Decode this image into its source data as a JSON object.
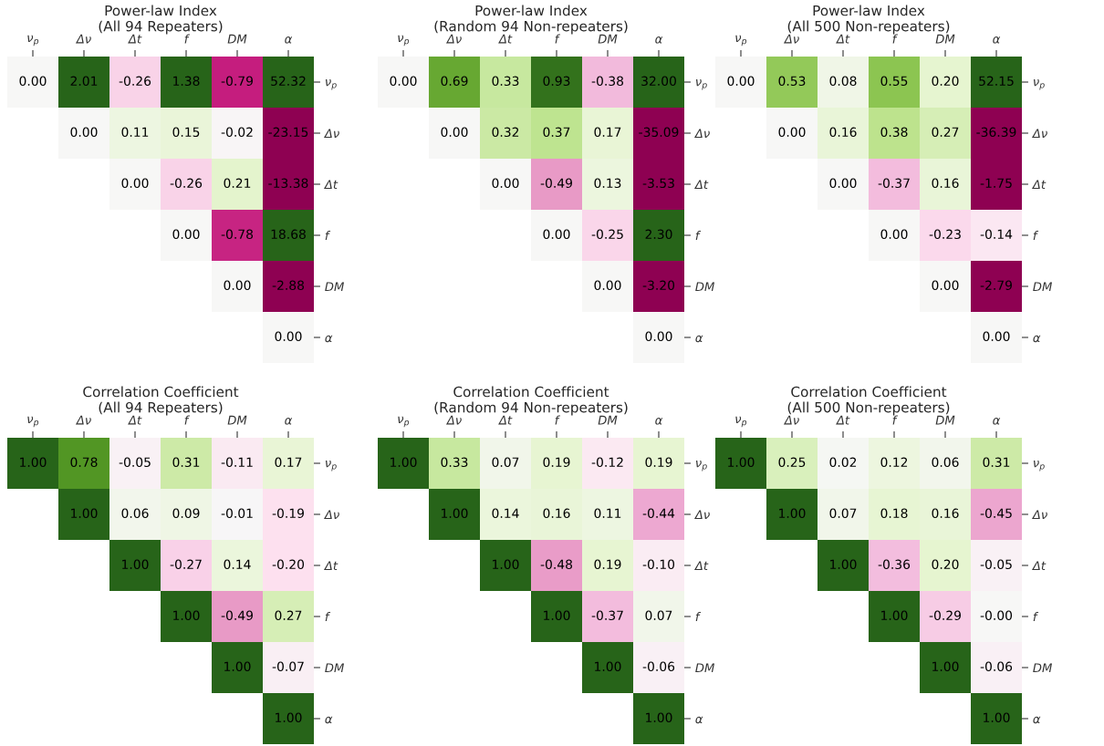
{
  "chart_data": [
    {
      "type": "heatmap",
      "title": "Power-law Index\n(All 94 Repeaters)",
      "categories": [
        "ν$_{p}$",
        "Δν",
        "Δt",
        "f",
        "DM",
        "α"
      ],
      "y_categories": [
        "ν$_{p}$",
        "Δν",
        "Δt",
        "f",
        "DM",
        "α"
      ],
      "cells": [
        [
          0.0,
          2.01,
          -0.26,
          1.38,
          -0.79,
          52.32
        ],
        [
          null,
          0.0,
          0.11,
          0.15,
          -0.02,
          -23.15
        ],
        [
          null,
          null,
          0.0,
          -0.26,
          0.21,
          -13.38
        ],
        [
          null,
          null,
          null,
          0.0,
          -0.78,
          18.68
        ],
        [
          null,
          null,
          null,
          null,
          0.0,
          -2.88
        ],
        [
          null,
          null,
          null,
          null,
          null,
          0.0
        ]
      ],
      "cell_labels": [
        [
          "0.00",
          "2.01",
          "-0.26",
          "1.38",
          "-0.79",
          "52.32"
        ],
        [
          null,
          "0.00",
          "0.11",
          "0.15",
          "-0.02",
          "-23.15"
        ],
        [
          null,
          null,
          "0.00",
          "-0.26",
          "0.21",
          "-13.38"
        ],
        [
          null,
          null,
          null,
          "0.00",
          "-0.78",
          "18.68"
        ],
        [
          null,
          null,
          null,
          null,
          "0.00",
          "-2.88"
        ],
        [
          null,
          null,
          null,
          null,
          null,
          "0.00"
        ]
      ]
    },
    {
      "type": "heatmap",
      "title": "Power-law Index\n(Random 94 Non-repeaters)",
      "categories": [
        "ν$_{p}$",
        "Δν",
        "Δt",
        "f",
        "DM",
        "α"
      ],
      "y_categories": [
        "ν$_{p}$",
        "Δν",
        "Δt",
        "f",
        "DM",
        "α"
      ],
      "cells": [
        [
          0.0,
          0.69,
          0.33,
          0.93,
          -0.38,
          32.0
        ],
        [
          null,
          0.0,
          0.32,
          0.37,
          0.17,
          -35.09
        ],
        [
          null,
          null,
          0.0,
          -0.49,
          0.13,
          -3.53
        ],
        [
          null,
          null,
          null,
          0.0,
          -0.25,
          2.3
        ],
        [
          null,
          null,
          null,
          null,
          0.0,
          -3.2
        ],
        [
          null,
          null,
          null,
          null,
          null,
          0.0
        ]
      ],
      "cell_labels": [
        [
          "0.00",
          "0.69",
          "0.33",
          "0.93",
          "-0.38",
          "32.00"
        ],
        [
          null,
          "0.00",
          "0.32",
          "0.37",
          "0.17",
          "-35.09"
        ],
        [
          null,
          null,
          "0.00",
          "-0.49",
          "0.13",
          "-3.53"
        ],
        [
          null,
          null,
          null,
          "0.00",
          "-0.25",
          "2.30"
        ],
        [
          null,
          null,
          null,
          null,
          "0.00",
          "-3.20"
        ],
        [
          null,
          null,
          null,
          null,
          null,
          "0.00"
        ]
      ]
    },
    {
      "type": "heatmap",
      "title": "Power-law Index\n(All 500 Non-repeaters)",
      "categories": [
        "ν$_{p}$",
        "Δν",
        "Δt",
        "f",
        "DM",
        "α"
      ],
      "y_categories": [
        "ν$_{p}$",
        "Δν",
        "Δt",
        "f",
        "DM",
        "α"
      ],
      "cells": [
        [
          0.0,
          0.53,
          0.08,
          0.55,
          0.2,
          52.15
        ],
        [
          null,
          0.0,
          0.16,
          0.38,
          0.27,
          -36.39
        ],
        [
          null,
          null,
          0.0,
          -0.37,
          0.16,
          -1.75
        ],
        [
          null,
          null,
          null,
          0.0,
          -0.23,
          -0.14
        ],
        [
          null,
          null,
          null,
          null,
          0.0,
          -2.79
        ],
        [
          null,
          null,
          null,
          null,
          null,
          0.0
        ]
      ],
      "cell_labels": [
        [
          "0.00",
          "0.53",
          "0.08",
          "0.55",
          "0.20",
          "52.15"
        ],
        [
          null,
          "0.00",
          "0.16",
          "0.38",
          "0.27",
          "-36.39"
        ],
        [
          null,
          null,
          "0.00",
          "-0.37",
          "0.16",
          "-1.75"
        ],
        [
          null,
          null,
          null,
          "0.00",
          "-0.23",
          "-0.14"
        ],
        [
          null,
          null,
          null,
          null,
          "0.00",
          "-2.79"
        ],
        [
          null,
          null,
          null,
          null,
          null,
          "0.00"
        ]
      ]
    },
    {
      "type": "heatmap",
      "title": "Correlation Coefficient\n(All 94 Repeaters)",
      "categories": [
        "ν$_{p}$",
        "Δν",
        "Δt",
        "f",
        "DM",
        "α"
      ],
      "y_categories": [
        "ν$_{p}$",
        "Δν",
        "Δt",
        "f",
        "DM",
        "α"
      ],
      "cells": [
        [
          1.0,
          0.78,
          -0.05,
          0.31,
          -0.11,
          0.17
        ],
        [
          null,
          1.0,
          0.06,
          0.09,
          -0.01,
          -0.19
        ],
        [
          null,
          null,
          1.0,
          -0.27,
          0.14,
          -0.2
        ],
        [
          null,
          null,
          null,
          1.0,
          -0.49,
          0.27
        ],
        [
          null,
          null,
          null,
          null,
          1.0,
          -0.07
        ],
        [
          null,
          null,
          null,
          null,
          null,
          1.0
        ]
      ],
      "cell_labels": [
        [
          "1.00",
          "0.78",
          "-0.05",
          "0.31",
          "-0.11",
          "0.17"
        ],
        [
          null,
          "1.00",
          "0.06",
          "0.09",
          "-0.01",
          "-0.19"
        ],
        [
          null,
          null,
          "1.00",
          "-0.27",
          "0.14",
          "-0.20"
        ],
        [
          null,
          null,
          null,
          "1.00",
          "-0.49",
          "0.27"
        ],
        [
          null,
          null,
          null,
          null,
          "1.00",
          "-0.07"
        ],
        [
          null,
          null,
          null,
          null,
          null,
          "1.00"
        ]
      ]
    },
    {
      "type": "heatmap",
      "title": "Correlation Coefficient\n(Random 94 Non-repeaters)",
      "categories": [
        "ν$_{p}$",
        "Δν",
        "Δt",
        "f",
        "DM",
        "α"
      ],
      "y_categories": [
        "ν$_{p}$",
        "Δν",
        "Δt",
        "f",
        "DM",
        "α"
      ],
      "cells": [
        [
          1.0,
          0.33,
          0.07,
          0.19,
          -0.12,
          0.19
        ],
        [
          null,
          1.0,
          0.14,
          0.16,
          0.11,
          -0.44
        ],
        [
          null,
          null,
          1.0,
          -0.48,
          0.19,
          -0.1
        ],
        [
          null,
          null,
          null,
          1.0,
          -0.37,
          0.07
        ],
        [
          null,
          null,
          null,
          null,
          1.0,
          -0.06
        ],
        [
          null,
          null,
          null,
          null,
          null,
          1.0
        ]
      ],
      "cell_labels": [
        [
          "1.00",
          "0.33",
          "0.07",
          "0.19",
          "-0.12",
          "0.19"
        ],
        [
          null,
          "1.00",
          "0.14",
          "0.16",
          "0.11",
          "-0.44"
        ],
        [
          null,
          null,
          "1.00",
          "-0.48",
          "0.19",
          "-0.10"
        ],
        [
          null,
          null,
          null,
          "1.00",
          "-0.37",
          "0.07"
        ],
        [
          null,
          null,
          null,
          null,
          "1.00",
          "-0.06"
        ],
        [
          null,
          null,
          null,
          null,
          null,
          "1.00"
        ]
      ]
    },
    {
      "type": "heatmap",
      "title": "Correlation Coefficient\n(All 500 Non-repeaters)",
      "categories": [
        "ν$_{p}$",
        "Δν",
        "Δt",
        "f",
        "DM",
        "α"
      ],
      "y_categories": [
        "ν$_{p}$",
        "Δν",
        "Δt",
        "f",
        "DM",
        "α"
      ],
      "cells": [
        [
          1.0,
          0.25,
          0.02,
          0.12,
          0.06,
          0.31
        ],
        [
          null,
          1.0,
          0.07,
          0.18,
          0.16,
          -0.45
        ],
        [
          null,
          null,
          1.0,
          -0.36,
          0.2,
          -0.05
        ],
        [
          null,
          null,
          null,
          1.0,
          -0.29,
          -0.0
        ],
        [
          null,
          null,
          null,
          null,
          1.0,
          -0.06
        ],
        [
          null,
          null,
          null,
          null,
          null,
          1.0
        ]
      ],
      "cell_labels": [
        [
          "1.00",
          "0.25",
          "0.02",
          "0.12",
          "0.06",
          "0.31"
        ],
        [
          null,
          "1.00",
          "0.07",
          "0.18",
          "0.16",
          "-0.45"
        ],
        [
          null,
          null,
          "1.00",
          "-0.36",
          "0.20",
          "-0.05"
        ],
        [
          null,
          null,
          null,
          "1.00",
          "-0.29",
          "-0.00"
        ],
        [
          null,
          null,
          null,
          null,
          "1.00",
          "-0.06"
        ],
        [
          null,
          null,
          null,
          null,
          null,
          "1.00"
        ]
      ]
    }
  ]
}
